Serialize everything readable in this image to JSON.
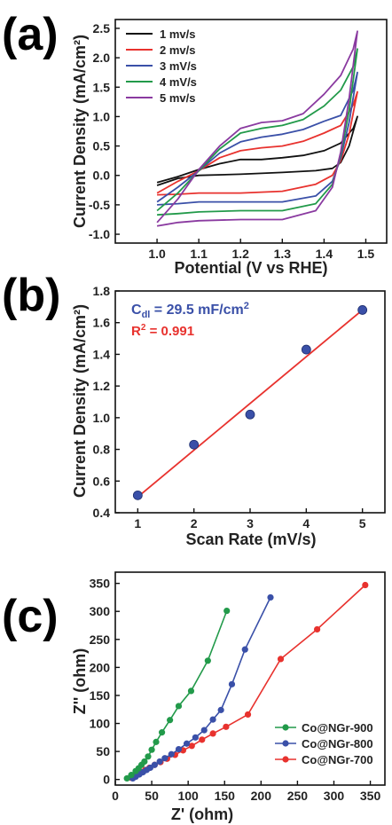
{
  "chart_data": [
    {
      "panel": "(a)",
      "type": "line",
      "xlabel": "Potential (V vs RHE)",
      "ylabel": "Current Density (mA/cm²)",
      "xlim": [
        0.9,
        1.55
      ],
      "ylim": [
        -1.15,
        2.65
      ],
      "xticks": [
        "1.0",
        "1.1",
        "1.2",
        "1.3",
        "1.4",
        "1.5"
      ],
      "yticks": [
        "-1.0",
        "-0.5",
        "0.0",
        "0.5",
        "1.0",
        "1.5",
        "2.0",
        "2.5"
      ],
      "legend_position": "top-left",
      "series": [
        {
          "name": "1 mv/s",
          "color": "#111111",
          "upper": [
            [
              1.0,
              -0.12
            ],
            [
              1.05,
              -0.02
            ],
            [
              1.1,
              0.1
            ],
            [
              1.15,
              0.2
            ],
            [
              1.2,
              0.27
            ],
            [
              1.25,
              0.27
            ],
            [
              1.3,
              0.3
            ],
            [
              1.35,
              0.34
            ],
            [
              1.4,
              0.42
            ],
            [
              1.44,
              0.55
            ],
            [
              1.47,
              0.8
            ],
            [
              1.48,
              1.0
            ]
          ],
          "lower": [
            [
              1.48,
              1.0
            ],
            [
              1.46,
              0.5
            ],
            [
              1.44,
              0.22
            ],
            [
              1.42,
              0.12
            ],
            [
              1.38,
              0.08
            ],
            [
              1.3,
              0.05
            ],
            [
              1.2,
              0.02
            ],
            [
              1.1,
              0.0
            ],
            [
              1.05,
              -0.05
            ],
            [
              1.0,
              -0.17
            ]
          ]
        },
        {
          "name": "2 mv/s",
          "color": "#e8322e",
          "upper": [
            [
              1.0,
              -0.3
            ],
            [
              1.05,
              -0.1
            ],
            [
              1.1,
              0.08
            ],
            [
              1.15,
              0.3
            ],
            [
              1.2,
              0.42
            ],
            [
              1.25,
              0.47
            ],
            [
              1.3,
              0.5
            ],
            [
              1.35,
              0.58
            ],
            [
              1.4,
              0.72
            ],
            [
              1.44,
              0.85
            ],
            [
              1.47,
              1.2
            ],
            [
              1.48,
              1.42
            ]
          ],
          "lower": [
            [
              1.48,
              1.42
            ],
            [
              1.46,
              0.7
            ],
            [
              1.44,
              0.25
            ],
            [
              1.42,
              0.0
            ],
            [
              1.38,
              -0.15
            ],
            [
              1.3,
              -0.27
            ],
            [
              1.2,
              -0.3
            ],
            [
              1.1,
              -0.3
            ],
            [
              1.05,
              -0.32
            ],
            [
              1.0,
              -0.33
            ]
          ]
        },
        {
          "name": "3 mV/s",
          "color": "#3a50a8",
          "upper": [
            [
              1.0,
              -0.45
            ],
            [
              1.05,
              -0.2
            ],
            [
              1.1,
              0.08
            ],
            [
              1.15,
              0.38
            ],
            [
              1.2,
              0.57
            ],
            [
              1.25,
              0.65
            ],
            [
              1.3,
              0.7
            ],
            [
              1.35,
              0.78
            ],
            [
              1.4,
              0.92
            ],
            [
              1.44,
              1.02
            ],
            [
              1.47,
              1.45
            ],
            [
              1.48,
              1.75
            ]
          ],
          "lower": [
            [
              1.48,
              1.75
            ],
            [
              1.46,
              0.9
            ],
            [
              1.44,
              0.3
            ],
            [
              1.42,
              -0.1
            ],
            [
              1.38,
              -0.35
            ],
            [
              1.3,
              -0.45
            ],
            [
              1.2,
              -0.45
            ],
            [
              1.1,
              -0.45
            ],
            [
              1.05,
              -0.48
            ],
            [
              1.0,
              -0.5
            ]
          ]
        },
        {
          "name": "4 mV/s",
          "color": "#229a4a",
          "upper": [
            [
              1.0,
              -0.6
            ],
            [
              1.05,
              -0.3
            ],
            [
              1.1,
              0.08
            ],
            [
              1.15,
              0.45
            ],
            [
              1.2,
              0.72
            ],
            [
              1.25,
              0.8
            ],
            [
              1.3,
              0.85
            ],
            [
              1.35,
              0.95
            ],
            [
              1.4,
              1.18
            ],
            [
              1.44,
              1.45
            ],
            [
              1.47,
              1.85
            ],
            [
              1.48,
              2.15
            ]
          ],
          "lower": [
            [
              1.48,
              2.15
            ],
            [
              1.46,
              1.1
            ],
            [
              1.44,
              0.35
            ],
            [
              1.42,
              -0.15
            ],
            [
              1.38,
              -0.48
            ],
            [
              1.3,
              -0.6
            ],
            [
              1.2,
              -0.6
            ],
            [
              1.1,
              -0.62
            ],
            [
              1.05,
              -0.65
            ],
            [
              1.0,
              -0.67
            ]
          ]
        },
        {
          "name": "5 mv/s",
          "color": "#8a3aa0",
          "upper": [
            [
              1.0,
              -0.8
            ],
            [
              1.05,
              -0.4
            ],
            [
              1.1,
              0.1
            ],
            [
              1.15,
              0.5
            ],
            [
              1.2,
              0.8
            ],
            [
              1.25,
              0.9
            ],
            [
              1.3,
              0.93
            ],
            [
              1.35,
              1.05
            ],
            [
              1.4,
              1.38
            ],
            [
              1.44,
              1.7
            ],
            [
              1.47,
              2.15
            ],
            [
              1.48,
              2.45
            ]
          ],
          "lower": [
            [
              1.48,
              2.45
            ],
            [
              1.46,
              1.3
            ],
            [
              1.44,
              0.4
            ],
            [
              1.42,
              -0.2
            ],
            [
              1.38,
              -0.6
            ],
            [
              1.3,
              -0.75
            ],
            [
              1.2,
              -0.75
            ],
            [
              1.1,
              -0.77
            ],
            [
              1.05,
              -0.8
            ],
            [
              1.0,
              -0.86
            ]
          ]
        }
      ]
    },
    {
      "panel": "(b)",
      "type": "scatter",
      "xlabel": "Scan Rate (mV/s)",
      "ylabel": "Current Density (mA/cm²)",
      "xlim": [
        0.6,
        5.4
      ],
      "ylim": [
        0.4,
        1.8
      ],
      "xticks": [
        "1",
        "2",
        "3",
        "4",
        "5"
      ],
      "yticks": [
        "0.4",
        "0.6",
        "0.8",
        "1.0",
        "1.2",
        "1.4",
        "1.6",
        "1.8"
      ],
      "point_color": "#3a50a8",
      "fit_color": "#e8322e",
      "x": [
        1,
        2,
        3,
        4,
        5
      ],
      "y": [
        0.51,
        0.83,
        1.02,
        1.43,
        1.68
      ],
      "fit": [
        [
          1,
          0.5
        ],
        [
          5,
          1.68
        ]
      ],
      "annotation_cdl": {
        "base": "C",
        "sub": "dl",
        "value": " = 29.5 mF/cm",
        "sup": "2",
        "color": "#3a50a8"
      },
      "annotation_r2": {
        "base": "R",
        "sup": "2",
        "value": " = 0.991",
        "color": "#e8322e"
      }
    },
    {
      "panel": "(c)",
      "type": "scatter",
      "xlabel": "Z' (ohm)",
      "ylabel": "Z'' (ohm)",
      "xlim": [
        0,
        370
      ],
      "ylim": [
        -10,
        370
      ],
      "xticks": [
        "0",
        "50",
        "100",
        "150",
        "200",
        "250",
        "300",
        "350"
      ],
      "yticks": [
        "0",
        "50",
        "100",
        "150",
        "200",
        "250",
        "300",
        "350"
      ],
      "legend_position": "bottom-right",
      "series": [
        {
          "name": "Co@NGr-900",
          "color": "#229a4a",
          "x": [
            16,
            22,
            28,
            32,
            36,
            40,
            45,
            50,
            56,
            64,
            75,
            87,
            104,
            127,
            153
          ],
          "y": [
            2,
            8,
            15,
            20,
            26,
            32,
            41,
            53,
            67,
            84,
            106,
            131,
            158,
            212,
            301
          ]
        },
        {
          "name": "Co@NGr-800",
          "color": "#3a50a8",
          "x": [
            24,
            28,
            33,
            38,
            43,
            48,
            54,
            61,
            68,
            77,
            87,
            98,
            110,
            122,
            134,
            145,
            160,
            178,
            213
          ],
          "y": [
            2,
            5,
            9,
            13,
            17,
            21,
            26,
            32,
            38,
            45,
            54,
            64,
            75,
            88,
            107,
            124,
            170,
            232,
            325
          ]
        },
        {
          "name": "Co@NGr-700",
          "color": "#e8322e",
          "x": [
            22,
            27,
            31,
            36,
            41,
            47,
            54,
            62,
            71,
            82,
            93,
            105,
            119,
            134,
            152,
            182,
            227,
            277,
            343
          ],
          "y": [
            3,
            6,
            9,
            13,
            17,
            21,
            26,
            31,
            37,
            44,
            52,
            60,
            71,
            82,
            94,
            116,
            215,
            268,
            347
          ]
        }
      ]
    }
  ]
}
